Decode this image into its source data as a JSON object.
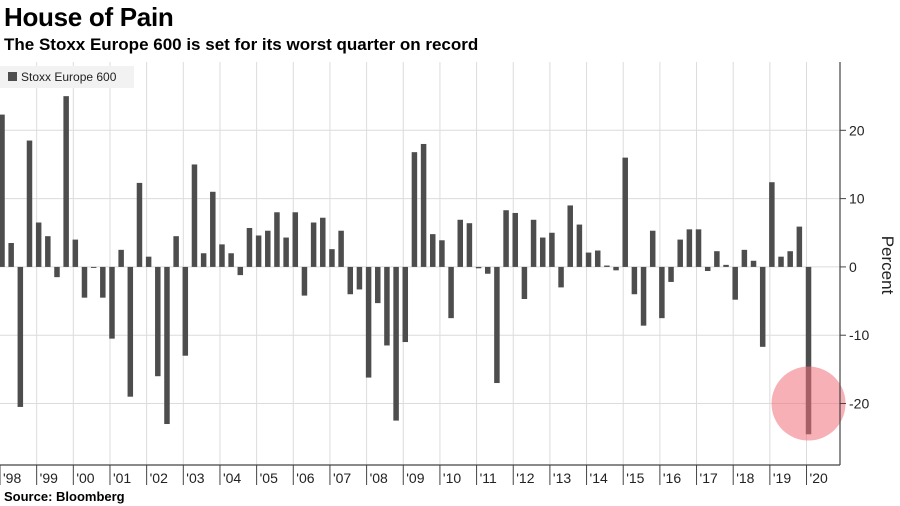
{
  "header": {
    "title": "House of Pain",
    "subtitle": "The Stoxx Europe 600 is set for its worst quarter on record"
  },
  "footer": {
    "source": "Source: Bloomberg"
  },
  "colors": {
    "bar": "#4d4d4d",
    "grid": "#dcdcdc",
    "highlight": "#f0707a"
  },
  "chart_data": {
    "type": "bar",
    "title": "House of Pain",
    "subtitle": "The Stoxx Europe 600 is set for its worst quarter on record",
    "ylabel": "Percent",
    "xlabel": "",
    "ylim": [
      -29,
      30
    ],
    "yticks": [
      20,
      10,
      0,
      -10,
      -20
    ],
    "y_axis_side": "right",
    "grid": true,
    "legend": {
      "position": "top-left",
      "entries": [
        "Stoxx Europe 600"
      ]
    },
    "x_tick_labels": [
      "'98",
      "'99",
      "'00",
      "'01",
      "'02",
      "'03",
      "'04",
      "'05",
      "'06",
      "'07",
      "'08",
      "'09",
      "'10",
      "'11",
      "'12",
      "'13",
      "'14",
      "'15",
      "'16",
      "'17",
      "'18",
      "'19",
      "'20"
    ],
    "series": [
      {
        "name": "Stoxx Europe 600",
        "values": [
          22.3,
          3.5,
          -20.5,
          18.5,
          6.5,
          4.5,
          -1.5,
          25,
          4,
          -4.5,
          0,
          -4.5,
          -10.5,
          2.5,
          -19,
          12.3,
          1.5,
          -16,
          -23,
          4.5,
          -13,
          15,
          2,
          11,
          3.3,
          2,
          -1.2,
          5.7,
          4.6,
          5.3,
          8,
          4.3,
          8,
          -4.2,
          6.5,
          7.2,
          2.6,
          5.3,
          -4,
          -3.3,
          -16.2,
          -5.3,
          -11.5,
          -22.5,
          -11,
          16.8,
          18,
          4.8,
          3.9,
          -7.5,
          6.9,
          6.4,
          -0.2,
          -1,
          -17,
          8.3,
          7.9,
          -4.7,
          6.9,
          4.3,
          5,
          -3,
          9,
          6.2,
          2.1,
          2.4,
          0.2,
          -0.5,
          16,
          -4,
          -8.6,
          5.3,
          -7.5,
          -2.2,
          4,
          5.5,
          5.5,
          -0.6,
          2.3,
          0.3,
          -4.8,
          2.5,
          0.9,
          -11.7,
          12.4,
          1.5,
          2.3,
          5.9,
          -24.5
        ]
      }
    ],
    "annotations": [
      {
        "type": "highlight-circle",
        "target": "Q1 '20",
        "color": "#f0707a"
      }
    ]
  }
}
